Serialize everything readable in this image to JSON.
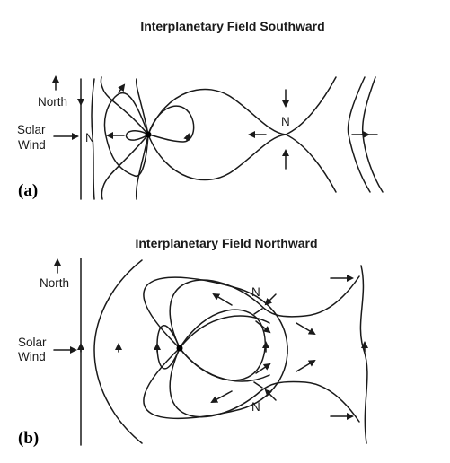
{
  "panel_a": {
    "title": "Interplanetary Field Southward",
    "label": "(a)",
    "north_label": "North",
    "solar_label_1": "Solar",
    "solar_label_2": "Wind",
    "neutral_point_left": "N",
    "neutral_point_right": "N"
  },
  "panel_b": {
    "title": "Interplanetary Field Northward",
    "label": "(b)",
    "north_label": "North",
    "solar_label_1": "Solar",
    "solar_label_2": "Wind",
    "neutral_point_top": "N",
    "neutral_point_bottom": "N"
  }
}
